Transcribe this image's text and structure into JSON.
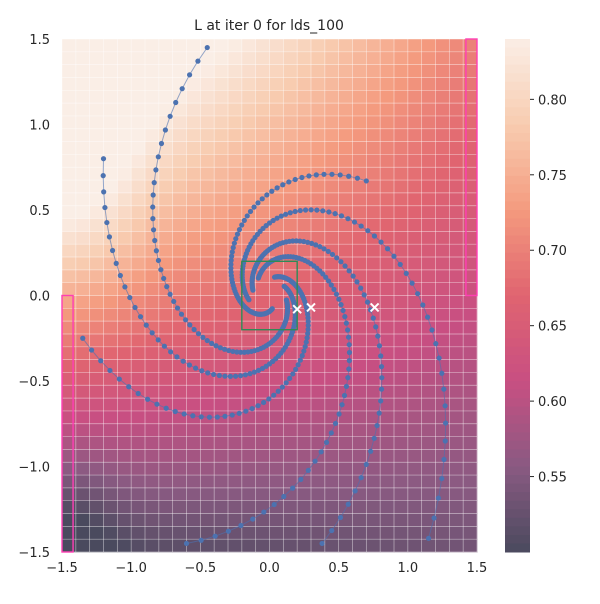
{
  "chart_data": {
    "type": "heatmap",
    "title": "L at iter 0 for lds_100",
    "xlabel": "",
    "ylabel": "",
    "xlim": [
      -1.5,
      1.5
    ],
    "ylim": [
      -1.5,
      1.5
    ],
    "x_ticks": [
      -1.5,
      -1.0,
      -0.5,
      0.0,
      0.5,
      1.0,
      1.5
    ],
    "y_ticks": [
      -1.5,
      -1.0,
      -0.5,
      0.0,
      0.5,
      1.0,
      1.5
    ],
    "x_tick_labels": [
      "−1.5",
      "−1.0",
      "−0.5",
      "0.0",
      "0.5",
      "1.0",
      "1.5"
    ],
    "y_tick_labels": [
      "−1.5",
      "−1.0",
      "−0.5",
      "0.0",
      "0.5",
      "1.0",
      "1.5"
    ],
    "grid": true,
    "heatmap": {
      "description": "value field L on a 30x40 grid, highest at upper-left, lowest at lower-left",
      "rows": 40,
      "cols": 30
    },
    "colorbar": {
      "vmin": 0.5,
      "vmax": 0.84,
      "ticks": [
        0.55,
        0.6,
        0.65,
        0.7,
        0.75,
        0.8
      ],
      "tick_labels": [
        "0.55",
        "0.60",
        "0.65",
        "0.70",
        "0.75",
        "0.80"
      ],
      "colormap": [
        "#4a4a5e",
        "#8a5a82",
        "#c84f82",
        "#e06470",
        "#f49a7e",
        "#f8ccb0",
        "#faeee6"
      ]
    },
    "trajectory_color": "#4c72b0",
    "start_points": [
      {
        "x": -0.45,
        "y": 1.45
      },
      {
        "x": -1.2,
        "y": 0.8
      },
      {
        "x": -1.35,
        "y": -0.25
      },
      {
        "x": -0.6,
        "y": -1.45
      },
      {
        "x": 0.38,
        "y": -1.45
      },
      {
        "x": 1.15,
        "y": -1.42
      },
      {
        "x": 0.7,
        "y": 0.67
      }
    ],
    "x_markers": [
      {
        "x": 0.2,
        "y": -0.08
      },
      {
        "x": 0.3,
        "y": -0.07
      },
      {
        "x": 0.76,
        "y": -0.07
      }
    ],
    "highlight_boxes": [
      {
        "x0": -0.2,
        "x1": 0.2,
        "y0": -0.2,
        "y1": 0.2,
        "color": "#2e8b57"
      },
      {
        "x0": -1.5,
        "x1": -1.42,
        "y0": -1.5,
        "y1": 0.0,
        "color": "#ff3fb4"
      },
      {
        "x0": 1.42,
        "x1": 1.5,
        "y0": 0.0,
        "y1": 1.5,
        "color": "#ff3fb4"
      }
    ]
  }
}
